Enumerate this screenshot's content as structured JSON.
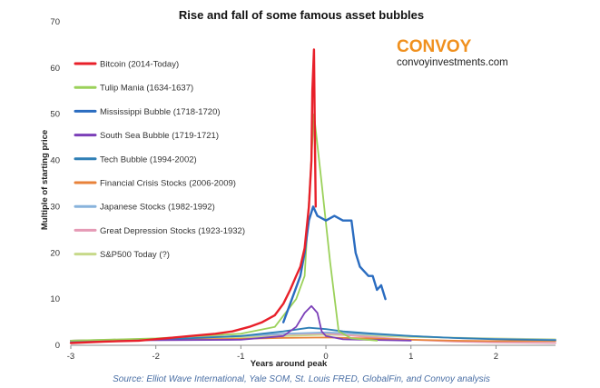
{
  "chart_data": {
    "type": "line",
    "title": "Rise and fall of some famous asset bubbles",
    "xlabel": "Years around peak",
    "ylabel": "Multiple of starting price",
    "xlim": [
      -3,
      2.7
    ],
    "ylim": [
      0,
      70
    ],
    "x_ticks": [
      "-3",
      "-2",
      "-1",
      "0",
      "1",
      "2"
    ],
    "y_ticks": [
      "0",
      "10",
      "20",
      "30",
      "40",
      "50",
      "60",
      "70"
    ],
    "legend_position": "top-left",
    "grid": false,
    "series": [
      {
        "name": "Bitcoin (2014-Today)",
        "color": "#e8202a",
        "x": [
          -3,
          -2.6,
          -2.2,
          -1.9,
          -1.6,
          -1.3,
          -1.1,
          -0.9,
          -0.75,
          -0.6,
          -0.5,
          -0.42,
          -0.35,
          -0.3,
          -0.25,
          -0.2,
          -0.17,
          -0.16,
          -0.14,
          -0.13,
          -0.12
        ],
        "y": [
          0.5,
          0.8,
          1.0,
          1.5,
          2.0,
          2.5,
          3.0,
          4.0,
          5.0,
          6.5,
          9.0,
          12.0,
          15.0,
          17.0,
          21.0,
          30.0,
          40.0,
          55.0,
          64.0,
          45.0,
          30.0
        ]
      },
      {
        "name": "Tulip Mania (1634-1637)",
        "color": "#9bd15a",
        "x": [
          -3,
          -2.0,
          -1.0,
          -0.6,
          -0.35,
          -0.25,
          -0.14,
          -0.05,
          0.05,
          0.15,
          0.3,
          0.6
        ],
        "y": [
          1.0,
          1.5,
          2.5,
          4.0,
          10.0,
          15.0,
          50.0,
          35.0,
          18.0,
          3.0,
          1.5,
          1.0
        ]
      },
      {
        "name": "Mississippi Bubble (1718-1720)",
        "color": "#2a6cc0",
        "x": [
          -0.5,
          -0.4,
          -0.3,
          -0.25,
          -0.2,
          -0.15,
          -0.1,
          0.0,
          0.1,
          0.2,
          0.3,
          0.35,
          0.4,
          0.45,
          0.5,
          0.55,
          0.6,
          0.65,
          0.7
        ],
        "y": [
          5.0,
          10.0,
          15.0,
          20.0,
          27.0,
          30.0,
          28.0,
          27.0,
          28.0,
          27.0,
          27.0,
          20.0,
          17.0,
          16.0,
          15.0,
          15.0,
          12.0,
          13.0,
          10.0
        ]
      },
      {
        "name": "South Sea Bubble (1719-1721)",
        "color": "#7b3fb8",
        "x": [
          -3,
          -1.0,
          -0.5,
          -0.35,
          -0.25,
          -0.17,
          -0.1,
          -0.05,
          0.0,
          0.2,
          1.0
        ],
        "y": [
          1.0,
          1.2,
          2.0,
          4.0,
          7.0,
          8.5,
          7.0,
          3.0,
          2.0,
          1.3,
          1.0
        ]
      },
      {
        "name": "Tech Bubble (1994-2002)",
        "color": "#2e7fb5",
        "x": [
          -3,
          -2.0,
          -1.0,
          -0.5,
          -0.2,
          0.0,
          0.2,
          0.5,
          1.0,
          1.5,
          2.0,
          2.7
        ],
        "y": [
          0.8,
          1.2,
          2.0,
          3.0,
          3.8,
          3.5,
          3.0,
          2.6,
          2.0,
          1.6,
          1.3,
          1.1
        ]
      },
      {
        "name": "Financial Crisis Stocks (2006-2009)",
        "color": "#e8823a",
        "x": [
          -3,
          -2.0,
          -1.0,
          -0.5,
          0.0,
          0.5,
          1.0,
          1.5,
          2.0,
          2.7
        ],
        "y": [
          1.0,
          1.2,
          1.4,
          1.6,
          1.7,
          1.5,
          1.2,
          1.0,
          0.9,
          0.9
        ]
      },
      {
        "name": "Japanese Stocks (1982-1992)",
        "color": "#88b3dc",
        "x": [
          -3,
          -2.0,
          -1.0,
          -0.5,
          0.0,
          0.5,
          1.0,
          1.5,
          2.0,
          2.7
        ],
        "y": [
          1.0,
          1.4,
          2.0,
          2.5,
          2.8,
          2.4,
          2.0,
          1.6,
          1.4,
          1.2
        ]
      },
      {
        "name": "Great Depression Stocks (1923-1932)",
        "color": "#e59ab5",
        "x": [
          -3,
          -2.0,
          -1.0,
          -0.5,
          0.0,
          0.5,
          1.0,
          1.5,
          2.0,
          2.7
        ],
        "y": [
          1.0,
          1.4,
          2.0,
          2.4,
          2.6,
          1.8,
          1.2,
          0.8,
          0.6,
          0.5
        ]
      },
      {
        "name": "S&P500 Today (?)",
        "color": "#c7d98a",
        "x": [
          -3,
          -2.0,
          -1.0,
          -0.5,
          0.0,
          0.5,
          1.0,
          2.0,
          2.7
        ],
        "y": [
          1.0,
          1.3,
          1.7,
          2.0,
          2.3,
          2.1,
          1.8,
          1.5,
          1.3
        ]
      }
    ],
    "annotations": {
      "brand": "CONVOY",
      "brand_url": "convoyinvestments.com",
      "source": "Source: Elliot Wave International, Yale SOM, St. Louis FRED, GlobalFin, and Convoy analysis"
    },
    "colors": {
      "brand": "#f0901e",
      "axis": "#8a8a8a",
      "background": "#ffffff"
    }
  }
}
